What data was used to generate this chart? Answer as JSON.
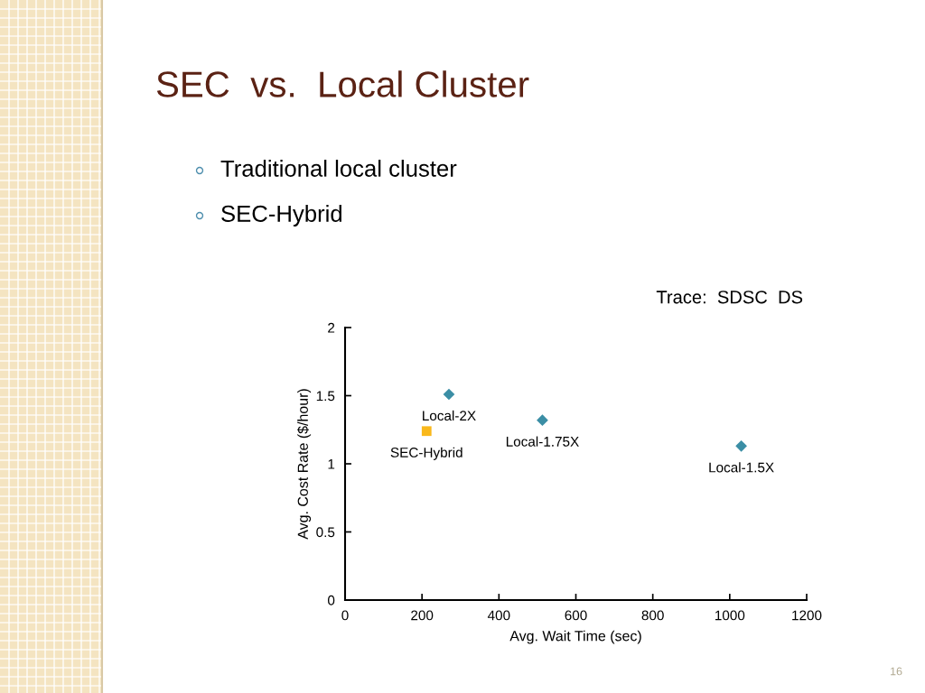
{
  "chart_data": {
    "type": "scatter",
    "title": "SEC  vs.  Local Cluster",
    "xlabel": "Avg. Wait Time (sec)",
    "ylabel": "Avg. Cost Rate ($/hour)",
    "series": [
      {
        "color": "#3b8ea5",
        "marker": "diamond",
        "x": [
          270,
          513,
          1030
        ],
        "values": [
          1.51,
          1.32,
          1.13
        ]
      },
      {
        "color": "#f9b81b",
        "marker": "square",
        "x": [
          212
        ],
        "values": [
          1.24
        ]
      }
    ],
    "xlim": [
      0,
      1200
    ],
    "ylim": [
      0,
      2
    ],
    "xticks": [
      0,
      200,
      400,
      600,
      800,
      1000,
      1200
    ],
    "yticks": [
      0,
      0.5,
      1,
      1.5,
      2
    ],
    "grid": false,
    "legend": false,
    "annotations": [
      "Traditional local cluster",
      "SEC-Hybrid",
      "Trace:  SDSC  DS",
      "16",
      {
        "text": "Local-2X",
        "x": 270,
        "y": 1.51
      },
      {
        "text": "Local-1.75X",
        "x": 513,
        "y": 1.32
      },
      {
        "text": "Local-1.5X",
        "x": 1030,
        "y": 1.13
      },
      {
        "text": "SEC-Hybrid",
        "x": 212,
        "y": 1.24
      }
    ]
  }
}
